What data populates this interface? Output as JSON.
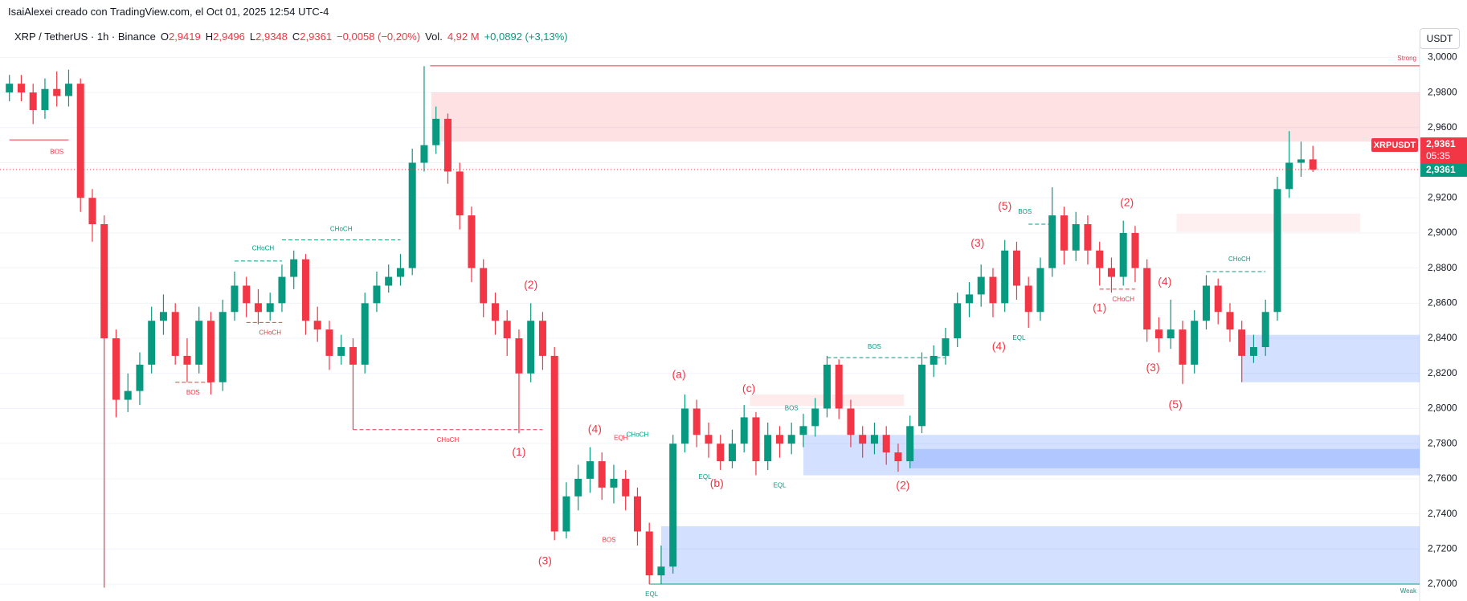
{
  "header": {
    "attribution": "IsaiAlexei creado con TradingView.com, el Oct 01, 2025 12:54 UTC-4",
    "symbol": "XRP / TetherUS · 1h · Binance",
    "ohlc": [
      {
        "key": "O",
        "value": "2,9419"
      },
      {
        "key": "H",
        "value": "2,9496"
      },
      {
        "key": "L",
        "value": "2,9348"
      },
      {
        "key": "C",
        "value": "2,9361"
      }
    ],
    "change": "−0,0058 (−0,20%)",
    "volume_label": "Vol.",
    "volume": "4,92 M",
    "change_24": "+0,0892 (+3,13%)",
    "currency": "USDT"
  },
  "chart_data": {
    "type": "candlestick",
    "up_color": "#089981",
    "down_color": "#f23645",
    "grid": true,
    "open": [
      2.98,
      2.985,
      2.98,
      2.97,
      2.982,
      2.978,
      2.985,
      2.92,
      2.905,
      2.84,
      2.805,
      2.81,
      2.825,
      2.85,
      2.855,
      2.83,
      2.825,
      2.85,
      2.815,
      2.855,
      2.87,
      2.86,
      2.855,
      2.86,
      2.875,
      2.885,
      2.85,
      2.845,
      2.83,
      2.835,
      2.825,
      2.86,
      2.87,
      2.875,
      2.88,
      2.94,
      2.95,
      2.965,
      2.935,
      2.91,
      2.88,
      2.86,
      2.85,
      2.84,
      2.82,
      2.85,
      2.83,
      2.73,
      2.75,
      2.76,
      2.77,
      2.755,
      2.76,
      2.75,
      2.73,
      2.705,
      2.71,
      2.78,
      2.8,
      2.785,
      2.78,
      2.77,
      2.78,
      2.795,
      2.77,
      2.785,
      2.78,
      2.785,
      2.79,
      2.8,
      2.825,
      2.8,
      2.785,
      2.78,
      2.785,
      2.775,
      2.77,
      2.79,
      2.825,
      2.83,
      2.84,
      2.86,
      2.865,
      2.875,
      2.86,
      2.89,
      2.87,
      2.855,
      2.88,
      2.91,
      2.89,
      2.905,
      2.89,
      2.88,
      2.875,
      2.9,
      2.88,
      2.845,
      2.84,
      2.845,
      2.825,
      2.85,
      2.87,
      2.855,
      2.845,
      2.83,
      2.835,
      2.855,
      2.925,
      2.94,
      2.9419
    ],
    "high": [
      2.99,
      2.99,
      2.985,
      2.988,
      2.992,
      2.993,
      2.988,
      2.925,
      2.91,
      2.845,
      2.82,
      2.832,
      2.858,
      2.865,
      2.86,
      2.84,
      2.858,
      2.855,
      2.862,
      2.878,
      2.875,
      2.868,
      2.866,
      2.882,
      2.89,
      2.888,
      2.858,
      2.85,
      2.842,
      2.84,
      2.866,
      2.878,
      2.882,
      2.888,
      2.948,
      2.995,
      2.972,
      2.968,
      2.94,
      2.915,
      2.885,
      2.866,
      2.856,
      2.845,
      2.86,
      2.855,
      2.835,
      2.758,
      2.768,
      2.778,
      2.775,
      2.768,
      2.765,
      2.755,
      2.735,
      2.722,
      2.785,
      2.808,
      2.805,
      2.792,
      2.785,
      2.788,
      2.802,
      2.798,
      2.792,
      2.79,
      2.792,
      2.797,
      2.806,
      2.83,
      2.828,
      2.805,
      2.79,
      2.792,
      2.79,
      2.78,
      2.796,
      2.832,
      2.836,
      2.846,
      2.866,
      2.872,
      2.882,
      2.88,
      2.896,
      2.895,
      2.875,
      2.886,
      2.926,
      2.915,
      2.912,
      2.91,
      2.895,
      2.886,
      2.907,
      2.904,
      2.885,
      2.852,
      2.862,
      2.85,
      2.856,
      2.876,
      2.874,
      2.86,
      2.85,
      2.842,
      2.862,
      2.932,
      2.958,
      2.952,
      2.9496
    ],
    "low": [
      2.975,
      2.975,
      2.962,
      2.965,
      2.972,
      2.972,
      2.912,
      2.895,
      2.698,
      2.795,
      2.798,
      2.802,
      2.82,
      2.842,
      2.825,
      2.815,
      2.82,
      2.808,
      2.81,
      2.85,
      2.852,
      2.848,
      2.85,
      2.855,
      2.868,
      2.842,
      2.838,
      2.822,
      2.825,
      2.788,
      2.82,
      2.855,
      2.866,
      2.87,
      2.876,
      2.935,
      2.945,
      2.928,
      2.902,
      2.872,
      2.852,
      2.842,
      2.83,
      2.786,
      2.815,
      2.822,
      2.725,
      2.726,
      2.742,
      2.752,
      2.748,
      2.746,
      2.742,
      2.722,
      2.7,
      2.7,
      2.706,
      2.775,
      2.778,
      2.772,
      2.765,
      2.766,
      2.775,
      2.762,
      2.765,
      2.772,
      2.774,
      2.778,
      2.784,
      2.795,
      2.794,
      2.778,
      2.772,
      2.774,
      2.768,
      2.764,
      2.766,
      2.786,
      2.818,
      2.825,
      2.835,
      2.852,
      2.858,
      2.852,
      2.855,
      2.862,
      2.846,
      2.85,
      2.875,
      2.882,
      2.884,
      2.882,
      2.87,
      2.866,
      2.87,
      2.872,
      2.838,
      2.832,
      2.834,
      2.814,
      2.82,
      2.845,
      2.848,
      2.838,
      2.815,
      2.826,
      2.83,
      2.85,
      2.92,
      2.932,
      2.9348
    ],
    "close": [
      2.985,
      2.98,
      2.97,
      2.982,
      2.978,
      2.985,
      2.92,
      2.905,
      2.84,
      2.805,
      2.81,
      2.825,
      2.85,
      2.855,
      2.83,
      2.825,
      2.85,
      2.815,
      2.855,
      2.87,
      2.86,
      2.855,
      2.86,
      2.875,
      2.885,
      2.85,
      2.845,
      2.83,
      2.835,
      2.825,
      2.86,
      2.87,
      2.875,
      2.88,
      2.94,
      2.95,
      2.965,
      2.935,
      2.91,
      2.88,
      2.86,
      2.85,
      2.84,
      2.82,
      2.85,
      2.83,
      2.73,
      2.75,
      2.76,
      2.77,
      2.755,
      2.76,
      2.75,
      2.73,
      2.705,
      2.71,
      2.78,
      2.8,
      2.785,
      2.78,
      2.77,
      2.78,
      2.795,
      2.77,
      2.785,
      2.78,
      2.785,
      2.79,
      2.8,
      2.825,
      2.8,
      2.785,
      2.78,
      2.785,
      2.775,
      2.77,
      2.79,
      2.825,
      2.83,
      2.84,
      2.86,
      2.865,
      2.875,
      2.86,
      2.89,
      2.87,
      2.855,
      2.88,
      2.91,
      2.89,
      2.905,
      2.89,
      2.88,
      2.875,
      2.9,
      2.88,
      2.845,
      2.84,
      2.845,
      2.825,
      2.85,
      2.87,
      2.855,
      2.845,
      2.83,
      2.835,
      2.855,
      2.925,
      2.94,
      2.9419,
      2.9361
    ],
    "ylim": [
      2.6904,
      3.0059
    ],
    "yticks": [
      {
        "value": 2.7,
        "label": "2,7000"
      },
      {
        "value": 2.72,
        "label": "2,7200"
      },
      {
        "value": 2.74,
        "label": "2,7400"
      },
      {
        "value": 2.76,
        "label": "2,7600"
      },
      {
        "value": 2.78,
        "label": "2,7800"
      },
      {
        "value": 2.8,
        "label": "2,8000"
      },
      {
        "value": 2.82,
        "label": "2,8200"
      },
      {
        "value": 2.84,
        "label": "2,8400"
      },
      {
        "value": 2.86,
        "label": "2,8600"
      },
      {
        "value": 2.88,
        "label": "2,8800"
      },
      {
        "value": 2.9,
        "label": "2,9000"
      },
      {
        "value": 2.92,
        "label": "2,9200"
      },
      {
        "value": 2.94,
        "label": "2,9400"
      },
      {
        "value": 2.96,
        "label": "2,9600"
      },
      {
        "value": 2.98,
        "label": "2,9800"
      },
      {
        "value": 3.0,
        "label": "3,0000"
      }
    ],
    "zones": [
      {
        "from": 35.6,
        "to": null,
        "low": 2.952,
        "high": 2.98,
        "color": "rgba(242,54,69,0.15)"
      },
      {
        "from": 98.5,
        "to": 114,
        "low": 2.9005,
        "high": 2.911,
        "color": "rgba(242,54,69,0.08)"
      },
      {
        "from": 62.5,
        "to": 75.5,
        "low": 2.8015,
        "high": 2.808,
        "color": "rgba(242,54,69,0.1)"
      },
      {
        "from": 104,
        "to": null,
        "low": 2.815,
        "high": 2.842,
        "color": "rgba(41,98,255,0.2)"
      },
      {
        "from": 67,
        "to": null,
        "low": 2.762,
        "high": 2.785,
        "color": "rgba(41,98,255,0.2)"
      },
      {
        "from": 76,
        "to": null,
        "low": 2.766,
        "high": 2.777,
        "color": "rgba(41,98,255,0.2)"
      },
      {
        "from": 55,
        "to": null,
        "low": 2.7,
        "high": 2.733,
        "color": "rgba(41,98,255,0.2)"
      }
    ],
    "levels": [
      {
        "from": 35.5,
        "to": null,
        "price": 2.9952,
        "color": "#f23645",
        "style": "solid",
        "label": "Strong"
      },
      {
        "from": 54,
        "to": null,
        "price": 2.7,
        "color": "#089981",
        "style": "solid",
        "label": "Weak"
      },
      {
        "from": 0,
        "to": 5,
        "price": 2.953,
        "color": "#f23645",
        "style": "solid"
      },
      {
        "from": 23,
        "to": 33,
        "price": 2.896,
        "color": "#089981",
        "style": "dashed"
      },
      {
        "from": 19,
        "to": 23,
        "price": 2.884,
        "color": "#089981",
        "style": "dashed"
      },
      {
        "from": 20,
        "to": 23,
        "price": 2.849,
        "color": "#f23645",
        "style": "dashed"
      },
      {
        "from": 14,
        "to": 17,
        "price": 2.815,
        "color": "#f23645",
        "style": "dashed"
      },
      {
        "from": 29,
        "to": 45,
        "price": 2.788,
        "color": "#f23645",
        "style": "dashed"
      },
      {
        "from": 69,
        "to": 79,
        "price": 2.829,
        "color": "#089981",
        "style": "dashed"
      },
      {
        "from": 86,
        "to": 88,
        "price": 2.905,
        "color": "#089981",
        "style": "dashed"
      },
      {
        "from": 101,
        "to": 106,
        "price": 2.878,
        "color": "#089981",
        "style": "dashed"
      },
      {
        "from": 92,
        "to": 95,
        "price": 2.868,
        "color": "#f23645",
        "style": "dashed"
      }
    ],
    "annotations": [
      {
        "text": "BOS",
        "index": 4,
        "price": 2.946,
        "color": "#f23645"
      },
      {
        "text": "BOS",
        "index": 15.5,
        "price": 2.809,
        "color": "#f23645"
      },
      {
        "text": "CHoCH",
        "index": 21.4,
        "price": 2.891,
        "color": "#089981"
      },
      {
        "text": "CHoCH",
        "index": 28,
        "price": 2.902,
        "color": "#089981"
      },
      {
        "text": "CHoCH",
        "index": 22,
        "price": 2.843,
        "color": "#f23645"
      },
      {
        "text": "CHoCH",
        "index": 37,
        "price": 2.782,
        "color": "#f23645"
      },
      {
        "text": "(1)",
        "index": 43,
        "price": 2.775,
        "color": "#f23645"
      },
      {
        "text": "(2)",
        "index": 44,
        "price": 2.87,
        "color": "#f23645"
      },
      {
        "text": "(3)",
        "index": 45.2,
        "price": 2.713,
        "color": "#f23645"
      },
      {
        "text": "(4)",
        "index": 49.4,
        "price": 2.788,
        "color": "#f23645"
      },
      {
        "text": "EQH",
        "index": 51.6,
        "price": 2.783,
        "color": "#f23645"
      },
      {
        "text": "CHoCH",
        "index": 53,
        "price": 2.785,
        "color": "#089981"
      },
      {
        "text": "BOS",
        "index": 50.6,
        "price": 2.725,
        "color": "#f23645"
      },
      {
        "text": "EQL",
        "index": 54.2,
        "price": 2.694,
        "color": "#089981"
      },
      {
        "text": "(a)",
        "index": 56.5,
        "price": 2.819,
        "color": "#f23645"
      },
      {
        "text": "(b)",
        "index": 59.7,
        "price": 2.757,
        "color": "#f23645"
      },
      {
        "text": "(c)",
        "index": 62.4,
        "price": 2.811,
        "color": "#f23645"
      },
      {
        "text": "EQL",
        "index": 58.7,
        "price": 2.761,
        "color": "#089981"
      },
      {
        "text": "EQL",
        "index": 65,
        "price": 2.756,
        "color": "#089981"
      },
      {
        "text": "BOS",
        "index": 66,
        "price": 2.8,
        "color": "#089981"
      },
      {
        "text": "BOS",
        "index": 73,
        "price": 2.835,
        "color": "#089981"
      },
      {
        "text": "(2)",
        "index": 75.4,
        "price": 2.756,
        "color": "#f23645"
      },
      {
        "text": "(3)",
        "index": 81.7,
        "price": 2.894,
        "color": "#f23645"
      },
      {
        "text": "(4)",
        "index": 83.5,
        "price": 2.835,
        "color": "#f23645"
      },
      {
        "text": "(5)",
        "index": 84,
        "price": 2.915,
        "color": "#f23645"
      },
      {
        "text": "BOS",
        "index": 85.7,
        "price": 2.912,
        "color": "#089981"
      },
      {
        "text": "EQL",
        "index": 85.2,
        "price": 2.84,
        "color": "#089981"
      },
      {
        "text": "(1)",
        "index": 92,
        "price": 2.857,
        "color": "#f23645"
      },
      {
        "text": "(2)",
        "index": 94.3,
        "price": 2.917,
        "color": "#f23645"
      },
      {
        "text": "CHoCH",
        "index": 94,
        "price": 2.862,
        "color": "#f23645"
      },
      {
        "text": "(4)",
        "index": 97.5,
        "price": 2.872,
        "color": "#f23645"
      },
      {
        "text": "(3)",
        "index": 96.5,
        "price": 2.823,
        "color": "#f23645"
      },
      {
        "text": "(5)",
        "index": 98.4,
        "price": 2.802,
        "color": "#f23645"
      },
      {
        "text": "CHoCH",
        "index": 103.8,
        "price": 2.885,
        "color": "#089981"
      }
    ],
    "symbol_label": "XRPUSDT",
    "last_price_label": "2,9361",
    "countdown": "05:35"
  }
}
